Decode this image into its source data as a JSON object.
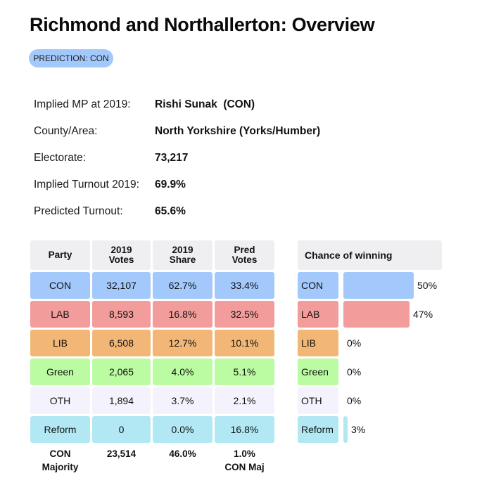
{
  "header": {
    "title": "Richmond and Northallerton: Overview",
    "badge": "PREDICTION: CON"
  },
  "info": [
    {
      "label": "Implied MP at 2019:",
      "value": "Rishi Sunak  (CON)"
    },
    {
      "label": "County/Area:",
      "value": "North Yorkshire (Yorks/Humber)"
    },
    {
      "label": "Electorate:",
      "value": "73,217"
    },
    {
      "label": "Implied Turnout 2019:",
      "value": "69.9%"
    },
    {
      "label": "Predicted Turnout:",
      "value": "65.6%"
    }
  ],
  "table": {
    "headers": [
      "Party",
      "2019\nVotes",
      "2019\nShare",
      "Pred\nVotes"
    ],
    "rows": [
      {
        "party": "CON",
        "votes": "32,107",
        "share": "62.7%",
        "pred": "33.4%",
        "color": "#a3c8fb"
      },
      {
        "party": "LAB",
        "votes": "8,593",
        "share": "16.8%",
        "pred": "32.5%",
        "color": "#f29c9c"
      },
      {
        "party": "LIB",
        "votes": "6,508",
        "share": "12.7%",
        "pred": "10.1%",
        "color": "#f2b776"
      },
      {
        "party": "Green",
        "votes": "2,065",
        "share": "4.0%",
        "pred": "5.1%",
        "color": "#bbfca3"
      },
      {
        "party": "OTH",
        "votes": "1,894",
        "share": "3.7%",
        "pred": "2.1%",
        "color": "#f4f2fd"
      },
      {
        "party": "Reform",
        "votes": "0",
        "share": "0.0%",
        "pred": "16.8%",
        "color": "#b1e8f3"
      }
    ],
    "footer": {
      "label": "CON\nMajority",
      "votes": "23,514",
      "share": "46.0%",
      "pred": "1.0%\nCON Maj"
    }
  },
  "chance": {
    "title": "Chance of winning",
    "rows": [
      {
        "party": "CON",
        "percent": 50,
        "label": "50%",
        "color": "#a3c8fb"
      },
      {
        "party": "LAB",
        "percent": 47,
        "label": "47%",
        "color": "#f29c9c"
      },
      {
        "party": "LIB",
        "percent": 0,
        "label": "0%",
        "color": "#f2b776"
      },
      {
        "party": "Green",
        "percent": 0,
        "label": "0%",
        "color": "#bbfca3"
      },
      {
        "party": "OTH",
        "percent": 0,
        "label": "0%",
        "color": "#f4f2fd"
      },
      {
        "party": "Reform",
        "percent": 3,
        "label": "3%",
        "color": "#b1e8f3"
      }
    ]
  }
}
